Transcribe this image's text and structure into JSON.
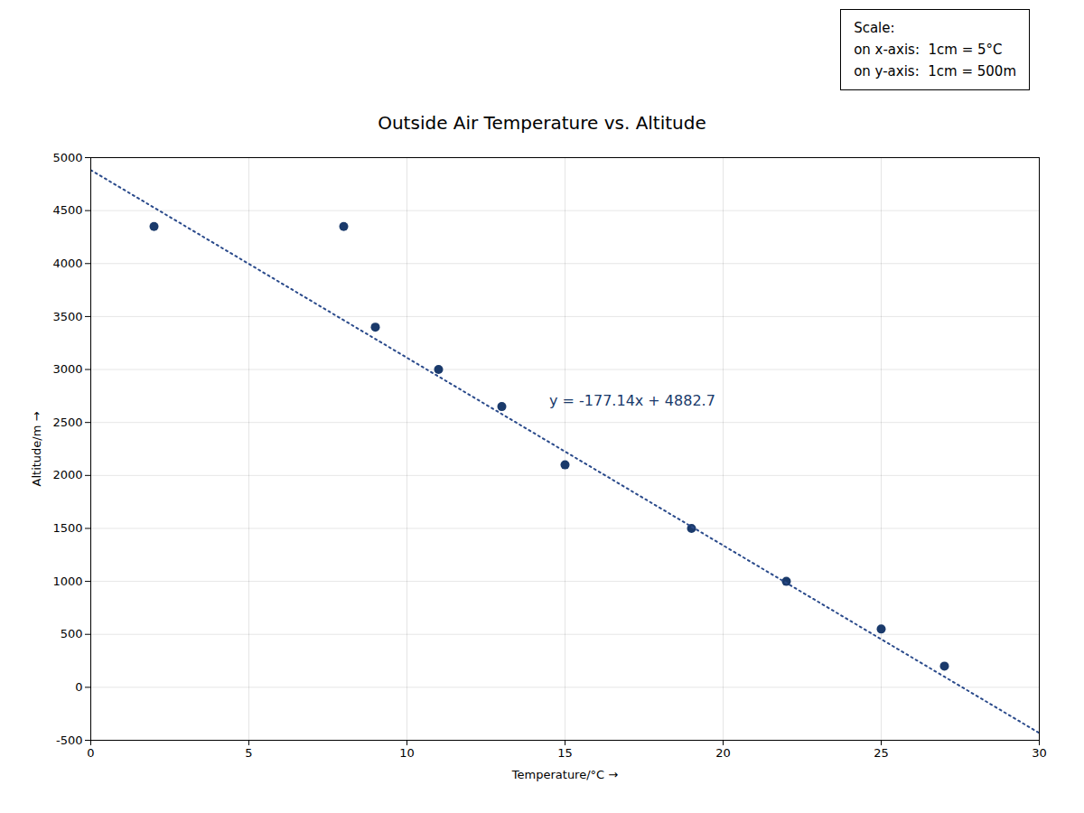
{
  "chart_data": {
    "type": "scatter",
    "title": "Outside Air Temperature vs. Altitude",
    "xlabel": "Temperature/°C",
    "ylabel": "Altitude/m",
    "xlim": [
      0,
      30
    ],
    "ylim": [
      -500,
      5000
    ],
    "xticks": [
      0,
      5,
      10,
      15,
      20,
      25,
      30
    ],
    "yticks": [
      -500,
      0,
      500,
      1000,
      1500,
      2000,
      2500,
      3000,
      3500,
      4000,
      4500,
      5000
    ],
    "grid": true,
    "series": [
      {
        "type": "scatter",
        "marker": "circle",
        "color": "#1a3a6b",
        "x": [
          2,
          8,
          9,
          11,
          13,
          15,
          19,
          22,
          25,
          27
        ],
        "values": [
          4350,
          4350,
          3400,
          3000,
          2650,
          2100,
          1500,
          1000,
          550,
          200
        ]
      },
      {
        "type": "line",
        "line_style": "dotted",
        "color": "#2a4a8b",
        "x": [
          0,
          30
        ],
        "values": [
          4882.7,
          -431.5
        ]
      }
    ],
    "annotations": [
      {
        "text": "y = -177.14x + 4882.7",
        "x": 14.5,
        "y": 2700,
        "color": "#1a3a6b"
      },
      {
        "text": "Scale:\non x-axis:  1cm = 5°C\non y-axis:  1cm = 500m"
      }
    ]
  }
}
